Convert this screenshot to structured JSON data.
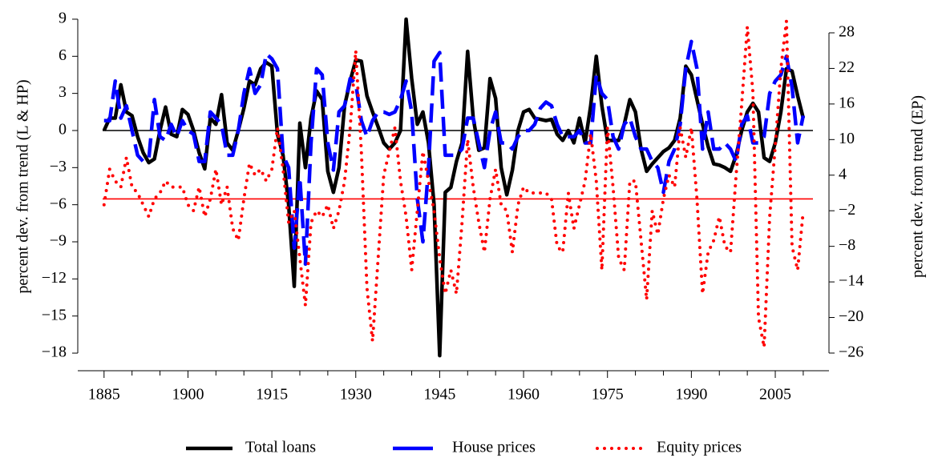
{
  "chart_data": {
    "type": "line",
    "y_label": "percent dev. from trend (L & HP)",
    "y2_label": "percent dev. from trend (EP)",
    "x": [
      1885,
      1886,
      1887,
      1888,
      1889,
      1890,
      1891,
      1892,
      1893,
      1894,
      1895,
      1896,
      1897,
      1898,
      1899,
      1900,
      1901,
      1902,
      1903,
      1904,
      1905,
      1906,
      1907,
      1908,
      1909,
      1910,
      1911,
      1912,
      1913,
      1914,
      1915,
      1916,
      1917,
      1918,
      1919,
      1920,
      1921,
      1922,
      1923,
      1924,
      1925,
      1926,
      1927,
      1928,
      1929,
      1930,
      1931,
      1932,
      1933,
      1934,
      1935,
      1936,
      1937,
      1938,
      1939,
      1940,
      1941,
      1942,
      1943,
      1944,
      1945,
      1946,
      1947,
      1948,
      1949,
      1950,
      1951,
      1952,
      1953,
      1954,
      1955,
      1956,
      1957,
      1958,
      1959,
      1960,
      1961,
      1962,
      1963,
      1964,
      1965,
      1966,
      1967,
      1968,
      1969,
      1970,
      1971,
      1972,
      1973,
      1974,
      1975,
      1976,
      1977,
      1978,
      1979,
      1980,
      1981,
      1982,
      1983,
      1984,
      1985,
      1986,
      1987,
      1988,
      1989,
      1990,
      1991,
      1992,
      1993,
      1994,
      1995,
      1996,
      1997,
      1998,
      1999,
      2000,
      2001,
      2002,
      2003,
      2004,
      2005,
      2006,
      2007,
      2008,
      2009,
      2010
    ],
    "series": [
      {
        "name": "Total loans",
        "color": "#000000",
        "style": "solid",
        "axis": "y",
        "values": [
          0,
          1,
          1,
          3.7,
          1.5,
          1.2,
          -0.5,
          -1.8,
          -2.6,
          -2.3,
          0,
          1.9,
          -0.3,
          -0.5,
          1.7,
          1.3,
          0,
          -1.8,
          -3.1,
          1,
          0.5,
          2.9,
          -1,
          -1.6,
          0,
          1.8,
          4,
          3.7,
          5,
          5.5,
          5.2,
          -0.3,
          -2,
          -6,
          -12.6,
          0.6,
          -3,
          1,
          3.2,
          2.5,
          -3.3,
          -5,
          -3,
          2,
          4,
          5.7,
          5.6,
          2.8,
          1.5,
          0.3,
          -1,
          -1.5,
          -1,
          0,
          9,
          4.2,
          0.5,
          1.5,
          -1,
          -6,
          -18.2,
          -5,
          -4.6,
          -2.5,
          -1,
          6.4,
          1,
          -1.6,
          -1.4,
          4.2,
          2.6,
          -3,
          -5.2,
          -3.2,
          0,
          1.5,
          1.7,
          1,
          0.9,
          0.8,
          0.9,
          -0.3,
          -0.8,
          0,
          -1,
          1,
          -1,
          2,
          6,
          2,
          -0.8,
          -0.8,
          -0.8,
          0.5,
          2.5,
          1.5,
          -1.5,
          -3.3,
          -2.7,
          -2.2,
          -1.7,
          -1.4,
          -0.8,
          1,
          5.2,
          4.5,
          2.5,
          0.5,
          -1.3,
          -2.7,
          -2.8,
          -3,
          -3.3,
          -2,
          0,
          1.5,
          2.2,
          1.5,
          -2.2,
          -2.5,
          -1,
          1.5,
          5,
          4.8,
          2.8,
          1
        ]
      },
      {
        "name": "House prices",
        "color": "#0000ff",
        "style": "dashed",
        "axis": "y",
        "values": [
          0.8,
          0.8,
          4,
          1,
          2,
          0,
          -2,
          -2.5,
          -2.3,
          2.5,
          -0.5,
          -0.8,
          0.5,
          -0.5,
          0.8,
          0,
          -0.3,
          -2.5,
          -2.5,
          1.5,
          1,
          0.5,
          -2,
          -2,
          0,
          3,
          5,
          3,
          3.7,
          6.2,
          5.8,
          5,
          -2,
          -3,
          -9.5,
          -3.8,
          -10.8,
          -1,
          5,
          4.5,
          -1,
          -3.2,
          1.5,
          2,
          4.2,
          3.8,
          0.8,
          -0.5,
          0.8,
          1.5,
          1.5,
          1.3,
          1.5,
          2.5,
          4,
          1.5,
          -5.5,
          -9,
          -3,
          5.6,
          6.3,
          -2,
          -2,
          -2,
          -1.5,
          1,
          1,
          -1,
          -3,
          0,
          1.5,
          -1,
          -1,
          -1.5,
          -0.5,
          0,
          0,
          0.5,
          1.8,
          2.3,
          2,
          0.5,
          -0.5,
          -0.5,
          -0.5,
          0,
          -1,
          -1,
          4.5,
          3,
          2.5,
          -0.5,
          -1.5,
          0.5,
          1,
          -0.5,
          -1.5,
          -1.5,
          -2.5,
          -3,
          -5,
          -2.5,
          -1.5,
          0.5,
          5,
          7.2,
          5,
          -1.5,
          1.5,
          -1.5,
          -1.5,
          -1,
          -1.5,
          -2.5,
          0.5,
          1.2,
          -1,
          -1,
          -0.5,
          3,
          4,
          4.5,
          6,
          3.5,
          -1,
          1.2
        ]
      },
      {
        "name": "Equity prices",
        "color": "#ff0000",
        "style": "dotted",
        "axis": "y2",
        "values": [
          -1,
          5,
          3,
          2,
          7,
          2,
          1,
          -1,
          -3,
          0,
          1,
          3,
          2,
          2,
          2,
          -1,
          -2,
          2,
          -3,
          0,
          5,
          -1,
          2,
          -5,
          -7,
          0,
          6,
          4,
          5,
          3,
          5,
          12,
          5,
          -4,
          -2,
          -10,
          -18,
          -4,
          -2,
          -3,
          -1,
          -5,
          -2,
          3,
          12,
          25,
          8,
          -15,
          -24,
          -10,
          4,
          8,
          12,
          3,
          -3,
          -12,
          -2,
          8,
          3,
          -2,
          -10,
          -16,
          -12,
          -16,
          -4,
          10,
          2,
          -4,
          -9,
          0,
          5,
          -1,
          -2,
          -9,
          -1,
          2,
          1,
          1,
          1,
          1,
          0,
          -8,
          -9,
          1,
          -5,
          -1,
          3,
          11,
          3,
          -12,
          12,
          2,
          -10,
          -12,
          3,
          3,
          -7,
          -17,
          -2,
          -6,
          0,
          4,
          2,
          12,
          7,
          12,
          0,
          -16,
          -9,
          -7,
          -3,
          -8,
          -9,
          4,
          16,
          29,
          18,
          -20,
          -25,
          -3,
          9,
          22,
          30,
          -8,
          -12,
          -2
        ]
      }
    ],
    "xlim": [
      1880.3,
      2014.6
    ],
    "xticks": [
      1885,
      1900,
      1915,
      1930,
      1945,
      1960,
      1975,
      1990,
      2005
    ],
    "xminorticks": [
      1890,
      1895,
      1905,
      1910,
      1920,
      1925,
      1935,
      1940,
      1950,
      1955,
      1965,
      1970,
      1980,
      1985,
      1995,
      2000,
      2010
    ],
    "ylim": [
      -18.71,
      9.71
    ],
    "yticks": [
      {
        "value": -18,
        "label": "−18"
      },
      {
        "value": -15,
        "label": "−15"
      },
      {
        "value": -12,
        "label": "−12"
      },
      {
        "value": -9,
        "label": "−9"
      },
      {
        "value": -6,
        "label": "−6"
      },
      {
        "value": -3,
        "label": "−3"
      },
      0,
      3,
      6,
      9
    ],
    "y2lim": [
      -27.49,
      31.78
    ],
    "y2ticks": [
      {
        "value": -26,
        "label": "−26"
      },
      {
        "value": -20,
        "label": "−20"
      },
      {
        "value": -14,
        "label": "−14"
      },
      {
        "value": -8,
        "label": "−8"
      },
      {
        "value": -2,
        "label": "−2"
      },
      4,
      10,
      16,
      22,
      28
    ],
    "hlines": [
      {
        "value": 0,
        "axis": "y",
        "color": "#000000"
      },
      {
        "value": 0,
        "axis": "y2",
        "color": "#ff0000"
      }
    ],
    "legend": "bottom"
  }
}
